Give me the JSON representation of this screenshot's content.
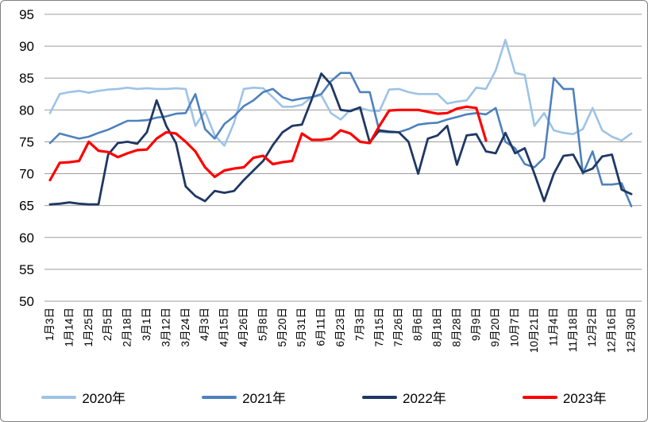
{
  "chart_data": {
    "type": "line",
    "title": "",
    "xlabel": "",
    "ylabel": "",
    "y_axis": {
      "min": 50,
      "max": 95,
      "step": 5,
      "ticks": [
        "50",
        "55",
        "60",
        "65",
        "70",
        "75",
        "80",
        "85",
        "90",
        "95"
      ]
    },
    "grid": true,
    "legend_position": "bottom",
    "x_labels": [
      "1月3日",
      "1月14日",
      "1月25日",
      "2月5日",
      "2月18日",
      "3月1日",
      "3月12日",
      "3月24日",
      "4月3日",
      "4月15日",
      "4月26日",
      "5月8日",
      "5月20日",
      "5月31日",
      "6月11日",
      "6月23日",
      "7月3日",
      "7月15日",
      "7月26日",
      "8月6日",
      "8月18日",
      "8月28日",
      "9月9日",
      "9月20日",
      "10月7日",
      "10月21日",
      "11月4日",
      "11月18日",
      "12月2日",
      "12月16日",
      "12月30日"
    ],
    "label_every": 2,
    "series": [
      {
        "name": "2020年",
        "color": "#9dc3e6",
        "width": 2.6,
        "values": [
          79.5,
          82.5,
          82.8,
          83.0,
          82.7,
          83.0,
          83.2,
          83.3,
          83.5,
          83.3,
          83.4,
          83.3,
          83.3,
          83.4,
          83.3,
          77.5,
          79.8,
          76.0,
          74.4,
          78.0,
          83.3,
          83.5,
          83.4,
          82.0,
          80.5,
          80.5,
          80.8,
          82.0,
          82.3,
          79.5,
          78.5,
          80.0,
          80.3,
          79.9,
          79.8,
          83.2,
          83.3,
          82.8,
          82.5,
          82.5,
          82.5,
          81.0,
          81.3,
          81.5,
          83.5,
          83.3,
          86.2,
          91.0,
          85.8,
          85.5,
          77.5,
          79.5,
          76.8,
          76.4,
          76.2,
          77.0,
          80.3,
          76.8,
          75.8,
          75.2,
          76.3
        ]
      },
      {
        "name": "2021年",
        "color": "#4e81bd",
        "width": 2.6,
        "values": [
          74.8,
          76.3,
          75.9,
          75.5,
          75.8,
          76.4,
          76.9,
          77.6,
          78.3,
          78.3,
          78.4,
          78.8,
          79.0,
          79.4,
          79.5,
          82.5,
          77.0,
          75.5,
          77.8,
          79.0,
          80.6,
          81.5,
          82.8,
          83.3,
          82.0,
          81.5,
          81.8,
          82.0,
          82.5,
          84.5,
          85.8,
          85.8,
          82.8,
          82.8,
          76.6,
          76.5,
          76.5,
          77.0,
          77.7,
          77.9,
          78.0,
          78.5,
          78.9,
          79.3,
          79.5,
          79.3,
          80.3,
          75.0,
          74.0,
          71.5,
          71.0,
          72.5,
          85.0,
          83.3,
          83.3,
          70.0,
          73.5,
          68.3,
          68.3,
          68.5,
          64.9
        ]
      },
      {
        "name": "2022年",
        "color": "#1f3864",
        "width": 2.8,
        "values": [
          65.2,
          65.3,
          65.5,
          65.3,
          65.2,
          65.2,
          73.0,
          74.8,
          75.0,
          74.7,
          76.5,
          81.5,
          77.5,
          74.8,
          68.0,
          66.5,
          65.7,
          67.3,
          67.0,
          67.3,
          69.0,
          70.5,
          72.0,
          74.5,
          76.5,
          77.5,
          77.7,
          81.6,
          85.7,
          84.0,
          80.0,
          79.8,
          80.4,
          74.9,
          76.8,
          76.6,
          76.5,
          75.0,
          70.0,
          75.5,
          76.0,
          77.5,
          71.4,
          76.0,
          76.2,
          73.5,
          73.2,
          76.4,
          73.2,
          74.0,
          70.0,
          65.7,
          70.0,
          72.8,
          73.0,
          70.2,
          70.8,
          72.7,
          73.0,
          67.5,
          66.8
        ]
      },
      {
        "name": "2023年",
        "color": "#ff0000",
        "width": 3.2,
        "values": [
          69.0,
          71.7,
          71.8,
          72.0,
          75.0,
          73.6,
          73.4,
          72.6,
          73.2,
          73.7,
          73.8,
          75.5,
          76.5,
          76.3,
          75.0,
          73.5,
          71.0,
          69.5,
          70.5,
          70.8,
          71.0,
          72.5,
          72.8,
          71.5,
          71.8,
          72.0,
          76.3,
          75.3,
          75.3,
          75.5,
          76.8,
          76.3,
          75.0,
          74.8,
          77.5,
          79.9,
          80.0,
          80.0,
          80.0,
          79.7,
          79.4,
          79.5,
          80.2,
          80.5,
          80.3,
          75.2
        ]
      }
    ]
  }
}
